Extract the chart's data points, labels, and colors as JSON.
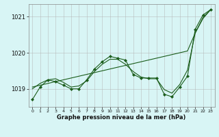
{
  "hours": [
    0,
    1,
    2,
    3,
    4,
    5,
    6,
    7,
    8,
    9,
    10,
    11,
    12,
    13,
    14,
    15,
    16,
    17,
    18,
    19,
    20,
    21,
    22,
    23
  ],
  "pressure_main": [
    1018.7,
    1019.05,
    1019.25,
    1019.2,
    1019.1,
    1019.0,
    1019.0,
    1019.25,
    1019.55,
    1019.75,
    1019.9,
    1019.85,
    1019.8,
    1019.4,
    1019.3,
    1019.3,
    1019.3,
    1018.85,
    1018.78,
    1019.05,
    1019.35,
    1020.65,
    1021.05,
    1021.2
  ],
  "pressure_smooth": [
    1019.0,
    1019.15,
    1019.25,
    1019.28,
    1019.18,
    1019.05,
    1019.08,
    1019.22,
    1019.48,
    1019.68,
    1019.82,
    1019.82,
    1019.68,
    1019.48,
    1019.33,
    1019.28,
    1019.28,
    1018.98,
    1018.88,
    1019.12,
    1019.52,
    1020.55,
    1020.98,
    1021.2
  ],
  "pressure_linear": [
    1019.05,
    1019.1,
    1019.15,
    1019.2,
    1019.25,
    1019.3,
    1019.35,
    1019.4,
    1019.45,
    1019.5,
    1019.55,
    1019.6,
    1019.65,
    1019.7,
    1019.75,
    1019.8,
    1019.85,
    1019.9,
    1019.95,
    1020.0,
    1020.05,
    1020.55,
    1020.95,
    1021.2
  ],
  "bg_color": "#d8f5f5",
  "line_color": "#1a5c1a",
  "grid_color": "#b0b0b0",
  "xlabel": "Graphe pression niveau de la mer (hPa)",
  "ylim": [
    1018.5,
    1021.35
  ],
  "xlim": [
    -0.5,
    23.5
  ],
  "yticks": [
    1019,
    1020,
    1021
  ],
  "xticks": [
    0,
    1,
    2,
    3,
    4,
    5,
    6,
    7,
    8,
    9,
    10,
    11,
    12,
    13,
    14,
    15,
    16,
    17,
    18,
    19,
    20,
    21,
    22,
    23
  ]
}
